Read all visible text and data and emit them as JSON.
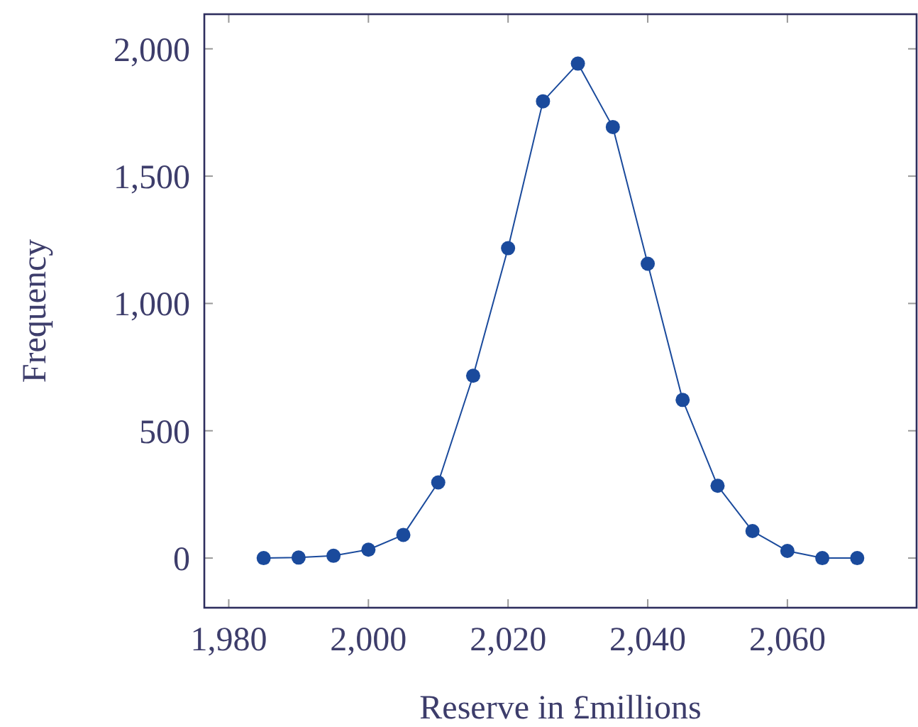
{
  "chart_data": {
    "type": "line",
    "xlabel": "Reserve in £millions",
    "ylabel": "Frequency",
    "x": [
      1985,
      1990,
      1995,
      2000,
      2005,
      2010,
      2015,
      2020,
      2025,
      2030,
      2035,
      2040,
      2045,
      2050,
      2055,
      2060,
      2065,
      2070
    ],
    "series": [
      {
        "color": "#1a4a9c",
        "values": [
          0,
          2,
          9,
          33,
          91,
          297,
          716,
          1217,
          1794,
          1942,
          1693,
          1156,
          621,
          284,
          106,
          28,
          0,
          0
        ]
      }
    ],
    "xlim": [
      1976.5,
      2078.5
    ],
    "xticks": [
      {
        "value": 1980,
        "label": "1,980"
      },
      {
        "value": 2000,
        "label": "2,000"
      },
      {
        "value": 2020,
        "label": "2,020"
      },
      {
        "value": 2040,
        "label": "2,040"
      },
      {
        "value": 2060,
        "label": "2,060"
      }
    ],
    "ylim": [
      -195,
      2136
    ],
    "yticks": [
      0,
      500,
      {
        "value": 1000,
        "label": "1,000"
      },
      {
        "value": 1500,
        "label": "1,500"
      },
      {
        "value": 2000,
        "label": "2,000"
      }
    ],
    "marker": "circle",
    "line_style": "solid"
  }
}
